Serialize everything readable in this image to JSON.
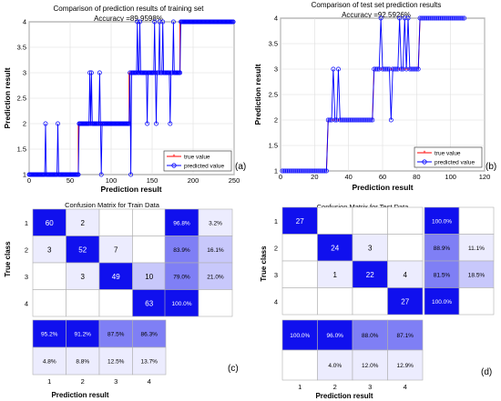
{
  "panel_labels": {
    "a": "(a)",
    "b": "(b)",
    "c": "(c)",
    "d": "(d)"
  },
  "colors": {
    "true_line": "#ff0000",
    "pred_line": "#0000ff",
    "marker": "#0000ff",
    "cell_strong": "#1010ee",
    "cell_mid": "#7f7ff5",
    "cell_light": "#c8c8fb",
    "cell_faint": "#ececfe"
  },
  "chart_data": [
    {
      "type": "line",
      "panel": "a",
      "title": "Comparison of prediction results of training set",
      "subtitle": "Accuracy =89.9598%",
      "xlabel": "Prediction result",
      "ylabel": "Prediction result",
      "xlim": [
        0,
        250
      ],
      "ylim": [
        1,
        4
      ],
      "xticks": [
        0,
        50,
        100,
        150,
        200,
        250
      ],
      "yticks": [
        1,
        1.5,
        2,
        2.5,
        3,
        3.5,
        4
      ],
      "legend": {
        "position": "bottom-right",
        "entries": [
          "true value",
          "predicted value"
        ]
      },
      "series": [
        {
          "name": "true value",
          "segments": [
            {
              "from": 0,
              "to": 60,
              "value": 1
            },
            {
              "from": 60,
              "to": 122,
              "value": 2
            },
            {
              "from": 122,
              "to": 184,
              "value": 3
            },
            {
              "from": 184,
              "to": 249,
              "value": 4
            }
          ]
        },
        {
          "name": "predicted value",
          "spikes": [
            {
              "x": 20,
              "value": 2
            },
            {
              "x": 35,
              "value": 2
            },
            {
              "x": 74,
              "value": 3
            },
            {
              "x": 76,
              "value": 3
            },
            {
              "x": 86,
              "value": 3
            },
            {
              "x": 88,
              "value": 1
            },
            {
              "x": 124,
              "value": 1
            },
            {
              "x": 132,
              "value": 4
            },
            {
              "x": 135,
              "value": 4
            },
            {
              "x": 144,
              "value": 2
            },
            {
              "x": 153,
              "value": 4
            },
            {
              "x": 155,
              "value": 2
            },
            {
              "x": 159,
              "value": 4
            },
            {
              "x": 163,
              "value": 4
            },
            {
              "x": 172,
              "value": 2
            },
            {
              "x": 176,
              "value": 4
            },
            {
              "x": 180,
              "value": 3
            }
          ]
        }
      ]
    },
    {
      "type": "line",
      "panel": "b",
      "title": "Comparison of test set prediction results",
      "subtitle": "Accuracy =92.5926%",
      "xlabel": "Prediction result",
      "ylabel": "Prediction result",
      "xlim": [
        0,
        120
      ],
      "ylim": [
        1,
        4
      ],
      "xticks": [
        0,
        20,
        40,
        60,
        80,
        100,
        120
      ],
      "yticks": [
        1,
        1.5,
        2,
        2.5,
        3,
        3.5,
        4
      ],
      "legend": {
        "position": "bottom-right",
        "entries": [
          "true value",
          "predicted value"
        ]
      },
      "series": [
        {
          "name": "true value",
          "segments": [
            {
              "from": 1,
              "to": 27,
              "value": 1
            },
            {
              "from": 28,
              "to": 54,
              "value": 2
            },
            {
              "from": 55,
              "to": 81,
              "value": 3
            },
            {
              "from": 82,
              "to": 108,
              "value": 4
            }
          ]
        },
        {
          "name": "predicted value",
          "spikes": [
            {
              "x": 31,
              "value": 3
            },
            {
              "x": 34,
              "value": 3
            },
            {
              "x": 59,
              "value": 4
            },
            {
              "x": 65,
              "value": 2
            },
            {
              "x": 70,
              "value": 4
            },
            {
              "x": 73,
              "value": 4
            },
            {
              "x": 75,
              "value": 4
            }
          ]
        }
      ]
    },
    {
      "type": "heatmap",
      "panel": "c",
      "title": "Confusion Matrix for Train Data",
      "xlabel": "Prediction result",
      "ylabel": "True class",
      "classes": [
        "1",
        "2",
        "3",
        "4"
      ],
      "matrix": [
        [
          "60",
          "2",
          "",
          ""
        ],
        [
          "3",
          "52",
          "7",
          ""
        ],
        [
          "",
          "3",
          "49",
          "10"
        ],
        [
          "",
          "",
          "",
          "63"
        ]
      ],
      "row_summary": [
        [
          "96.8%",
          "3.2%"
        ],
        [
          "83.9%",
          "16.1%"
        ],
        [
          "79.0%",
          "21.0%"
        ],
        [
          "100.0%",
          ""
        ]
      ],
      "col_summary": [
        [
          "95.2%",
          "91.2%",
          "87.5%",
          "86.3%"
        ],
        [
          "4.8%",
          "8.8%",
          "12.5%",
          "13.7%"
        ]
      ]
    },
    {
      "type": "heatmap",
      "panel": "d",
      "title": "Confusion Matrix for Test Data",
      "xlabel": "Prediction result",
      "ylabel": "True class",
      "classes": [
        "1",
        "2",
        "3",
        "4"
      ],
      "matrix": [
        [
          "27",
          "",
          "",
          ""
        ],
        [
          "",
          "24",
          "3",
          ""
        ],
        [
          "",
          "1",
          "22",
          "4"
        ],
        [
          "",
          "",
          "",
          "27"
        ]
      ],
      "row_summary": [
        [
          "100.0%",
          ""
        ],
        [
          "88.9%",
          "11.1%"
        ],
        [
          "81.5%",
          "18.5%"
        ],
        [
          "100.0%",
          ""
        ]
      ],
      "col_summary": [
        [
          "100.0%",
          "96.0%",
          "88.0%",
          "87.1%"
        ],
        [
          "",
          "4.0%",
          "12.0%",
          "12.9%"
        ]
      ]
    }
  ]
}
